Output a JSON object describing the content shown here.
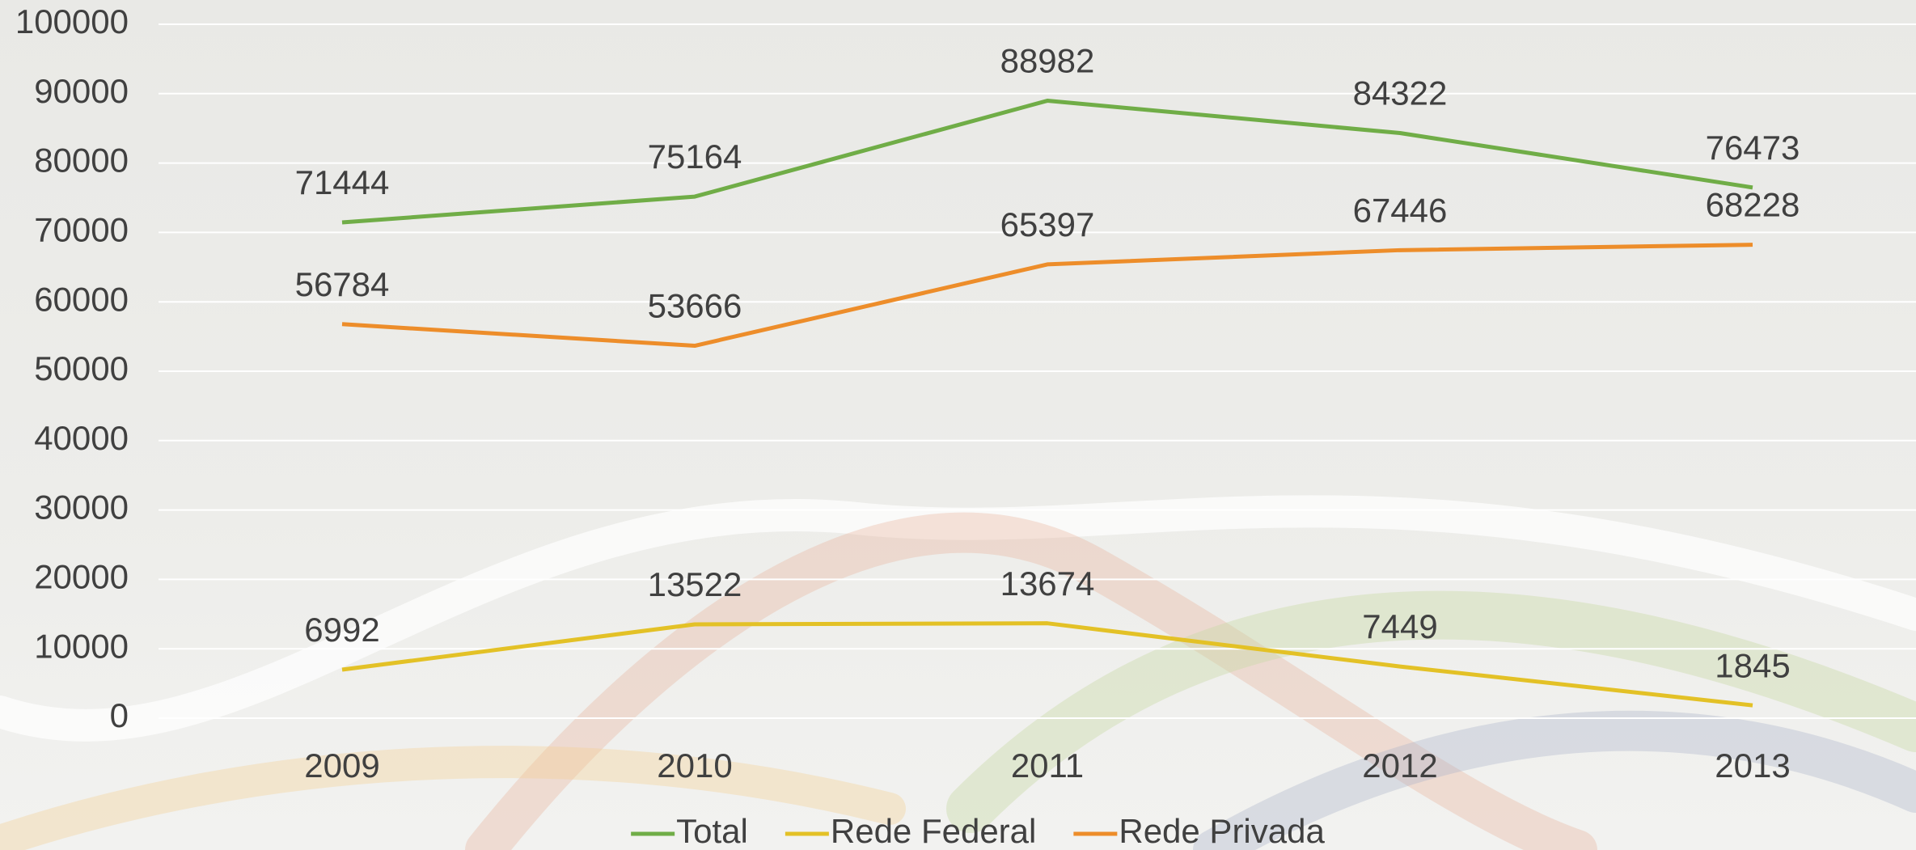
{
  "chart_data": {
    "type": "line",
    "categories": [
      "2009",
      "2010",
      "2011",
      "2012",
      "2013"
    ],
    "series": [
      {
        "name": "Total",
        "color": "#70ad47",
        "values": [
          71444,
          75164,
          88982,
          84322,
          76473
        ]
      },
      {
        "name": "Rede Federal",
        "color": "#e3c126",
        "values": [
          6992,
          13522,
          13674,
          7449,
          1845
        ]
      },
      {
        "name": "Rede Privada",
        "color": "#ed8d2a",
        "values": [
          56784,
          53666,
          65397,
          67446,
          68228
        ]
      }
    ],
    "ylim": [
      0,
      100000
    ],
    "yticks": [
      0,
      10000,
      20000,
      30000,
      40000,
      50000,
      60000,
      70000,
      80000,
      90000,
      100000
    ],
    "grid": true,
    "legend": "bottom"
  }
}
